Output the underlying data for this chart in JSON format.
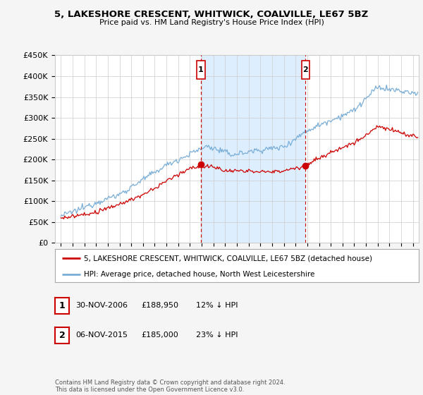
{
  "title": "5, LAKESHORE CRESCENT, WHITWICK, COALVILLE, LE67 5BZ",
  "subtitle": "Price paid vs. HM Land Registry's House Price Index (HPI)",
  "legend_line1": "5, LAKESHORE CRESCENT, WHITWICK, COALVILLE, LE67 5BZ (detached house)",
  "legend_line2": "HPI: Average price, detached house, North West Leicestershire",
  "footnote": "Contains HM Land Registry data © Crown copyright and database right 2024.\nThis data is licensed under the Open Government Licence v3.0.",
  "sale1_label": "1",
  "sale1_date": "30-NOV-2006",
  "sale1_price": "£188,950",
  "sale1_hpi": "12% ↓ HPI",
  "sale1_year": 2006.92,
  "sale2_label": "2",
  "sale2_date": "06-NOV-2015",
  "sale2_price": "£185,000",
  "sale2_hpi": "23% ↓ HPI",
  "sale2_year": 2015.85,
  "ylim": [
    0,
    450000
  ],
  "xlim_start": 1994.5,
  "xlim_end": 2025.5,
  "red_color": "#cc0000",
  "blue_color": "#7aaed6",
  "shade_color": "#ddeeff",
  "background_color": "#f5f5f5",
  "plot_bg_color": "#ffffff",
  "grid_color": "#cccccc"
}
